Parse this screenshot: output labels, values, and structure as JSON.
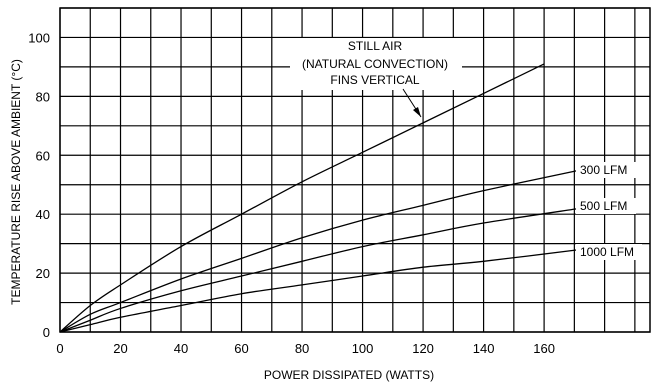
{
  "chart_data": {
    "type": "line",
    "xlabel": "POWER DISSIPATED (WATTS)",
    "ylabel": "TEMPERATURE RISE ABOVE AMBIENT (°C)",
    "xlim": [
      0,
      195
    ],
    "ylim": [
      0,
      110
    ],
    "grid": true,
    "x_ticks": [
      0,
      20,
      40,
      60,
      80,
      100,
      120,
      140,
      160
    ],
    "y_ticks": [
      0,
      20,
      40,
      60,
      80,
      100
    ],
    "series": [
      {
        "name": "STILL AIR (NATURAL CONVECTION) FINS VERTICAL",
        "x": [
          0,
          10,
          20,
          40,
          60,
          80,
          100,
          120,
          140,
          160
        ],
        "y": [
          0,
          9,
          16,
          29,
          40,
          51,
          61,
          71,
          81,
          91
        ]
      },
      {
        "name": "300 LFM",
        "x": [
          0,
          10,
          20,
          40,
          60,
          80,
          100,
          120,
          140,
          172
        ],
        "y": [
          0,
          6,
          10,
          18,
          25,
          32,
          38,
          43,
          48,
          55
        ]
      },
      {
        "name": "500 LFM",
        "x": [
          0,
          10,
          20,
          40,
          60,
          80,
          100,
          120,
          140,
          172
        ],
        "y": [
          0,
          4,
          8,
          14,
          19,
          24,
          29,
          33,
          37,
          42
        ]
      },
      {
        "name": "1000 LFM",
        "x": [
          0,
          10,
          20,
          40,
          60,
          80,
          100,
          120,
          140,
          172
        ],
        "y": [
          0,
          2.5,
          5,
          9,
          13,
          16,
          19,
          22,
          24,
          28
        ]
      }
    ],
    "annotation_lines": [
      "STILL AIR",
      "(NATURAL CONVECTION)",
      "FINS VERTICAL"
    ]
  }
}
